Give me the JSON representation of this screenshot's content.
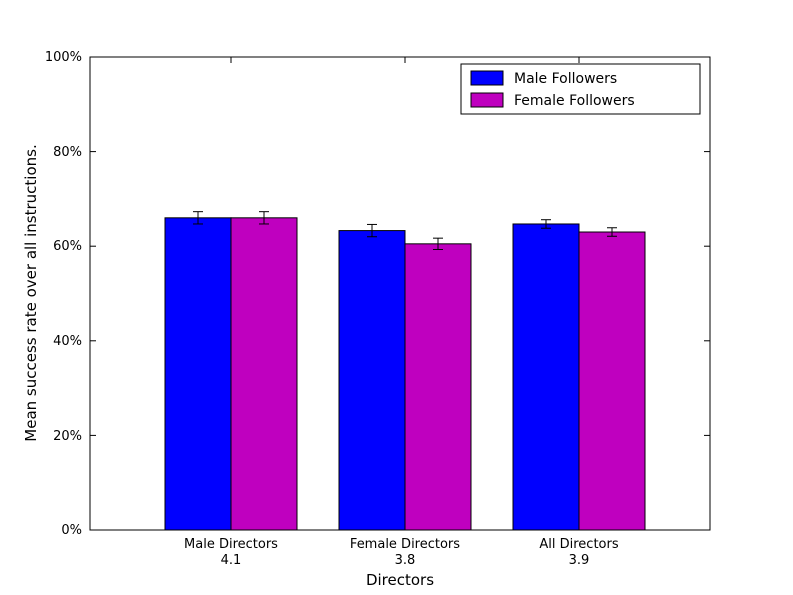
{
  "figure": {
    "background_color": "#ffffff",
    "axes_edge_color": "#000000"
  },
  "chart_data": {
    "type": "bar",
    "title": "",
    "xlabel": "Directors",
    "ylabel": "Mean success rate over all instructions.",
    "categories": [
      "Male Directors",
      "Female Directors",
      "All Directors"
    ],
    "category_sublabels": [
      "4.1",
      "3.8",
      "3.9"
    ],
    "series": [
      {
        "name": "Male Followers",
        "color": "#0000ff",
        "values": [
          66.0,
          63.3,
          64.7
        ],
        "errors": [
          1.3,
          1.3,
          0.9
        ]
      },
      {
        "name": "Female Followers",
        "color": "#bf00bf",
        "values": [
          66.0,
          60.5,
          63.0
        ],
        "errors": [
          1.3,
          1.2,
          0.9
        ]
      }
    ],
    "ylim": [
      0,
      100
    ],
    "ytick_values": [
      0,
      20,
      40,
      60,
      80,
      100
    ],
    "yticks": [
      "0%",
      "20%",
      "40%",
      "60%",
      "80%",
      "100%"
    ],
    "grid": false,
    "legend": {
      "position": "upper right",
      "entries": [
        "Male Followers",
        "Female Followers"
      ]
    },
    "bar_edge_color": "#000000",
    "error_bar_color": "#000000"
  }
}
